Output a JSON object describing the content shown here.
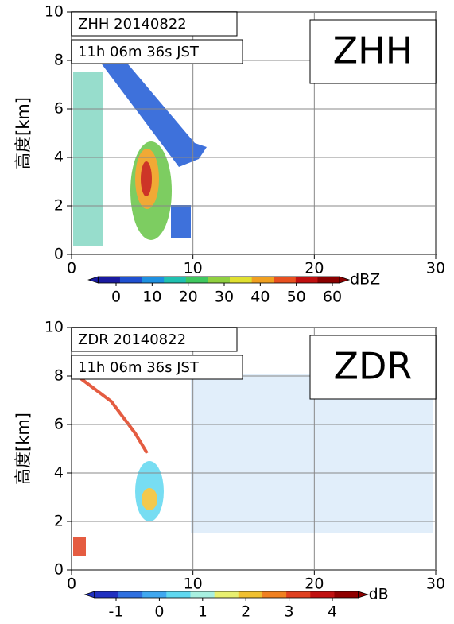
{
  "chart_data": [
    {
      "type": "heatmap",
      "title": "ZHH 20140822",
      "subtitle": "11h 06m 36s JST",
      "label": "ZHH",
      "ylabel": "高度[km]",
      "xlim": [
        0,
        30
      ],
      "xticks": [
        0,
        10,
        20,
        30
      ],
      "ylim": [
        0,
        10
      ],
      "yticks": [
        0,
        2,
        4,
        6,
        8,
        10
      ],
      "grid": true,
      "colorbar": {
        "unit": "dBZ",
        "lim": [
          -5,
          62
        ],
        "ticks": [
          0,
          10,
          20,
          30,
          40,
          50,
          60
        ],
        "colors": [
          "#1a1aa0",
          "#2050d0",
          "#1e90e0",
          "#20c0b0",
          "#40c860",
          "#90d040",
          "#e0e030",
          "#f0a020",
          "#e85020",
          "#c01010",
          "#8a0000"
        ]
      }
    },
    {
      "type": "heatmap",
      "title": "ZDR 20140822",
      "subtitle": "11h 06m 36s JST",
      "label": "ZDR",
      "ylabel": "高度[km]",
      "xlim": [
        0,
        30
      ],
      "xticks": [
        0,
        10,
        20,
        30
      ],
      "ylim": [
        0,
        10
      ],
      "yticks": [
        0,
        2,
        4,
        6,
        8,
        10
      ],
      "grid": true,
      "colorbar": {
        "unit": "dB",
        "lim": [
          -1.5,
          4.6
        ],
        "ticks": [
          -1,
          0,
          1,
          2,
          3,
          4
        ],
        "colors": [
          "#2030c0",
          "#2f70e0",
          "#40a8f0",
          "#60d8f0",
          "#a8f0e0",
          "#e8f070",
          "#f0c030",
          "#f08020",
          "#e04020",
          "#c01010",
          "#900000"
        ]
      }
    }
  ]
}
